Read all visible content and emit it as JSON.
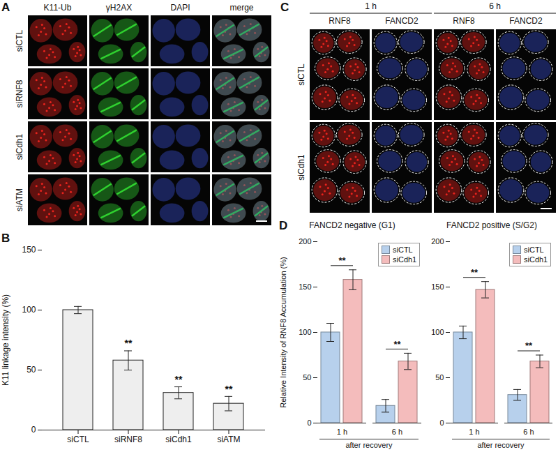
{
  "image_panels": [
    {
      "panel_label": "A",
      "channels": [
        {
          "name": "K11-Ub",
          "color": "#e8231d"
        },
        {
          "name": "γH2AX",
          "color": "#2fd12f"
        },
        {
          "name": "DAPI",
          "color": "#3a4fd8"
        }
      ],
      "merge_label": "merge",
      "rows": [
        "siCTL",
        "siRNF8",
        "siCdh1",
        "siATM"
      ]
    },
    {
      "panel_label": "C",
      "timepoints": [
        "1 h",
        "6 h"
      ],
      "channels": [
        {
          "name": "RNF8",
          "color": "#e8231d"
        },
        {
          "name": "FANCD2",
          "color": "#3a4fd8"
        }
      ],
      "rows": [
        "siCTL",
        "siCdh1"
      ]
    }
  ],
  "chart_data": [
    {
      "panel_label": "B",
      "type": "bar",
      "y_label": "K11 linkage intensity (%)",
      "categories": [
        "siCTL",
        "siRNF8",
        "siCdh1",
        "siATM"
      ],
      "values": [
        100,
        58,
        31,
        22
      ],
      "errors": [
        3,
        8,
        5,
        6
      ],
      "color": "#eeeeee",
      "ylim": [
        0,
        150
      ],
      "yticks": [
        0,
        50,
        100,
        150
      ],
      "annotations": [
        {
          "category": "siRNF8",
          "text": "**"
        },
        {
          "category": "siCdh1",
          "text": "**"
        },
        {
          "category": "siATM",
          "text": "**"
        }
      ]
    },
    {
      "panel_label": "D",
      "type": "bar",
      "title": "FANCD2 negative (G1)",
      "y_label": "Relative Intensity of RNF8 Accumulation (%)",
      "x_label": "after recovery",
      "categories": [
        "1 h",
        "6 h"
      ],
      "series": [
        {
          "name": "siCTL",
          "color": "#b7d0ec",
          "values": [
            100,
            19
          ],
          "errors": [
            10,
            7
          ]
        },
        {
          "name": "siCdh1",
          "color": "#f4bcbc",
          "values": [
            158,
            68
          ],
          "errors": [
            11,
            9
          ]
        }
      ],
      "ylim": [
        0,
        200
      ],
      "yticks": [
        0,
        50,
        100,
        150,
        200
      ],
      "legend": "top-right",
      "annotations": [
        {
          "category": "1 h",
          "text": "**"
        },
        {
          "category": "6 h",
          "text": "**"
        }
      ]
    },
    {
      "type": "bar",
      "title": "FANCD2 positive (S/G2)",
      "x_label": "after recovery",
      "categories": [
        "1 h",
        "6 h"
      ],
      "series": [
        {
          "name": "siCTL",
          "color": "#b7d0ec",
          "values": [
            100,
            31
          ],
          "errors": [
            7,
            6
          ]
        },
        {
          "name": "siCdh1",
          "color": "#f4bcbc",
          "values": [
            147,
            68
          ],
          "errors": [
            9,
            7
          ]
        }
      ],
      "ylim": [
        0,
        200
      ],
      "yticks": [
        0,
        50,
        100,
        150,
        200
      ],
      "legend": "top-right",
      "annotations": [
        {
          "category": "1 h",
          "text": "**"
        },
        {
          "category": "6 h",
          "text": "**"
        }
      ]
    }
  ]
}
